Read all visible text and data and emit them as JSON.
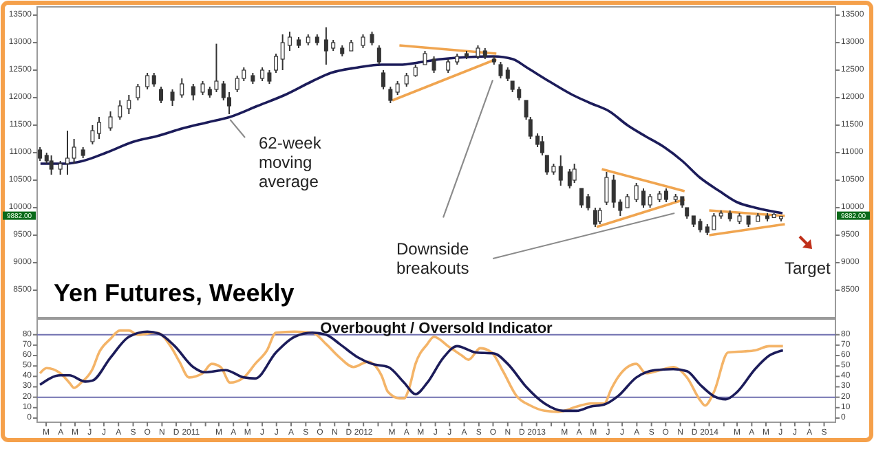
{
  "chart_data": [
    {
      "type": "candlestick",
      "title": "Yen Futures, Weekly",
      "xlim": [
        "2010-02-10",
        "2014-09-25"
      ],
      "ylim": [
        8000,
        13650
      ],
      "yticks": [
        8500,
        9000,
        9500,
        10000,
        10500,
        11000,
        11500,
        12000,
        12500,
        13000,
        13500
      ],
      "y2lim": [
        8000,
        13650
      ],
      "y2ticks": [
        8500,
        9000,
        9500,
        10000,
        10500,
        11000,
        11500,
        12000,
        12500,
        13000,
        13500
      ],
      "tick_labels": "y",
      "color": "#333333",
      "x": [
        "2010-02-16",
        "2010-03-02",
        "2010-03-12",
        "2010-03-31",
        "2010-04-15",
        "2010-04-29",
        "2010-05-18",
        "2010-06-07",
        "2010-06-21",
        "2010-07-15",
        "2010-08-04",
        "2010-08-23",
        "2010-09-11",
        "2010-10-01",
        "2010-10-15",
        "2010-10-30",
        "2010-11-23",
        "2010-12-13",
        "2011-01-06",
        "2011-01-26",
        "2011-02-10",
        "2011-02-24",
        "2011-03-11",
        "2011-03-23",
        "2011-04-09",
        "2011-04-23",
        "2011-05-12",
        "2011-06-01",
        "2011-06-16",
        "2011-06-30",
        "2011-07-14",
        "2011-07-29",
        "2011-08-17",
        "2011-09-06",
        "2011-09-25",
        "2011-10-14",
        "2011-10-29",
        "2011-11-17",
        "2011-12-06",
        "2011-12-31",
        "2012-01-19",
        "2012-02-03",
        "2012-02-12",
        "2012-02-27",
        "2012-03-13",
        "2012-04-01",
        "2012-04-20",
        "2012-05-10",
        "2012-05-29",
        "2012-06-28",
        "2012-07-17",
        "2012-08-06",
        "2012-08-30",
        "2012-09-14",
        "2012-10-03",
        "2012-10-17",
        "2012-11-01",
        "2012-11-11",
        "2012-11-25",
        "2012-12-10",
        "2012-12-19",
        "2013-01-03",
        "2013-01-13",
        "2013-01-23",
        "2013-02-06",
        "2013-02-21",
        "2013-03-12",
        "2013-03-22",
        "2013-04-06",
        "2013-04-20",
        "2013-05-05",
        "2013-05-15",
        "2013-05-29",
        "2013-06-13",
        "2013-06-27",
        "2013-07-12",
        "2013-07-31",
        "2013-08-15",
        "2013-08-29",
        "2013-09-18",
        "2013-10-02",
        "2013-10-22",
        "2013-11-05",
        "2013-11-15",
        "2013-11-29",
        "2013-12-13",
        "2013-12-28",
        "2014-01-11",
        "2014-01-26",
        "2014-02-14",
        "2014-03-06",
        "2014-03-25",
        "2014-04-14",
        "2014-05-04",
        "2014-05-18",
        "2014-06-02"
      ],
      "ohlc": [
        [
          11050,
          11100,
          10850,
          10900
        ],
        [
          10950,
          11000,
          10800,
          10850
        ],
        [
          10850,
          10950,
          10600,
          10700
        ],
        [
          10700,
          10850,
          10600,
          10800
        ],
        [
          10800,
          11400,
          10600,
          10900
        ],
        [
          10900,
          11250,
          10800,
          11100
        ],
        [
          11050,
          11100,
          10900,
          10950
        ],
        [
          11200,
          11500,
          11150,
          11400
        ],
        [
          11350,
          11650,
          11250,
          11550
        ],
        [
          11450,
          11750,
          11400,
          11650
        ],
        [
          11650,
          11950,
          11600,
          11850
        ],
        [
          11800,
          12050,
          11700,
          11950
        ],
        [
          12000,
          12250,
          11950,
          12200
        ],
        [
          12200,
          12450,
          12150,
          12400
        ],
        [
          12400,
          12450,
          12200,
          12250
        ],
        [
          12150,
          12200,
          11900,
          11950
        ],
        [
          12100,
          12150,
          11850,
          11950
        ],
        [
          12050,
          12350,
          12000,
          12250
        ],
        [
          12200,
          12250,
          11950,
          12050
        ],
        [
          12100,
          12300,
          12050,
          12250
        ],
        [
          12150,
          12200,
          12000,
          12050
        ],
        [
          12150,
          12980,
          12100,
          12300
        ],
        [
          12250,
          12300,
          11950,
          12000
        ],
        [
          12000,
          12100,
          11700,
          11850
        ],
        [
          12150,
          12400,
          12100,
          12350
        ],
        [
          12350,
          12550,
          12300,
          12500
        ],
        [
          12400,
          12450,
          12250,
          12300
        ],
        [
          12350,
          12550,
          12300,
          12500
        ],
        [
          12450,
          12500,
          12250,
          12300
        ],
        [
          12500,
          12800,
          12450,
          12750
        ],
        [
          12700,
          13150,
          12500,
          13000
        ],
        [
          12950,
          13200,
          12850,
          13100
        ],
        [
          13050,
          13100,
          12900,
          12950
        ],
        [
          13000,
          13150,
          12950,
          13100
        ],
        [
          13100,
          13150,
          12950,
          13000
        ],
        [
          13050,
          13280,
          12600,
          12850
        ],
        [
          12900,
          13050,
          12850,
          13000
        ],
        [
          12900,
          12950,
          12750,
          12800
        ],
        [
          12850,
          13050,
          12850,
          13000
        ],
        [
          12950,
          13150,
          12900,
          13100
        ],
        [
          13150,
          13200,
          12950,
          13000
        ],
        [
          12900,
          12950,
          12600,
          12650
        ],
        [
          12450,
          12500,
          12150,
          12200
        ],
        [
          12150,
          12200,
          11900,
          11950
        ],
        [
          12100,
          12300,
          12050,
          12250
        ],
        [
          12250,
          12450,
          12200,
          12400
        ],
        [
          12400,
          12600,
          12380,
          12550
        ],
        [
          12600,
          12850,
          12600,
          12800
        ],
        [
          12700,
          12750,
          12450,
          12500
        ],
        [
          12500,
          12700,
          12450,
          12650
        ],
        [
          12650,
          12800,
          12600,
          12750
        ],
        [
          12800,
          12850,
          12700,
          12750
        ],
        [
          12750,
          12950,
          12700,
          12900
        ],
        [
          12850,
          12900,
          12700,
          12750
        ],
        [
          12700,
          12750,
          12600,
          12650
        ],
        [
          12600,
          12650,
          12350,
          12400
        ],
        [
          12500,
          12550,
          12300,
          12350
        ],
        [
          12300,
          12300,
          12100,
          12150
        ],
        [
          12150,
          12200,
          11950,
          12000
        ],
        [
          11950,
          11950,
          11600,
          11650
        ],
        [
          11600,
          11650,
          11250,
          11300
        ],
        [
          11300,
          11350,
          11100,
          11150
        ],
        [
          11200,
          11300,
          10950,
          11000
        ],
        [
          10950,
          10950,
          10600,
          10650
        ],
        [
          10650,
          10800,
          10600,
          10750
        ],
        [
          10750,
          10950,
          10400,
          10500
        ],
        [
          10650,
          10700,
          10350,
          10400
        ],
        [
          10500,
          10800,
          10450,
          10700
        ],
        [
          10350,
          10350,
          10000,
          10050
        ],
        [
          10200,
          10250,
          9950,
          10000
        ],
        [
          9950,
          10000,
          9650,
          9700
        ],
        [
          9750,
          10000,
          9700,
          9950
        ],
        [
          10100,
          10650,
          10050,
          10550
        ],
        [
          10500,
          10600,
          10000,
          10100
        ],
        [
          10100,
          10150,
          9850,
          9950
        ],
        [
          10000,
          10250,
          10000,
          10200
        ],
        [
          10150,
          10450,
          10100,
          10400
        ],
        [
          10300,
          10350,
          10000,
          10050
        ],
        [
          10050,
          10250,
          10000,
          10200
        ],
        [
          10150,
          10300,
          10100,
          10250
        ],
        [
          10300,
          10350,
          10100,
          10150
        ],
        [
          10150,
          10250,
          10100,
          10200
        ],
        [
          10200,
          10200,
          10000,
          10050
        ],
        [
          10000,
          10000,
          9800,
          9850
        ],
        [
          9850,
          9850,
          9650,
          9700
        ],
        [
          9750,
          9800,
          9550,
          9600
        ],
        [
          9650,
          9700,
          9500,
          9550
        ],
        [
          9600,
          9900,
          9600,
          9850
        ],
        [
          9850,
          9950,
          9800,
          9900
        ],
        [
          9900,
          9950,
          9750,
          9800
        ],
        [
          9750,
          9900,
          9700,
          9850
        ],
        [
          9850,
          9850,
          9650,
          9700
        ],
        [
          9750,
          9900,
          9750,
          9850
        ],
        [
          9850,
          9900,
          9750,
          9800
        ],
        [
          9820,
          9900,
          9820,
          9880
        ],
        [
          9800,
          9850,
          9750,
          9840
        ]
      ],
      "series": [
        {
          "type": "line",
          "color": "#1c1c5a",
          "x": [
            "2010-02-17",
            "2010-04-10",
            "2010-05-18",
            "2010-07-06",
            "2010-09-02",
            "2010-10-21",
            "2010-12-18",
            "2011-02-05",
            "2011-03-25",
            "2011-05-22",
            "2011-07-19",
            "2011-09-15",
            "2011-10-24",
            "2011-12-21",
            "2012-02-08",
            "2012-03-17",
            "2012-05-05",
            "2012-06-13",
            "2012-10-02",
            "2012-11-12",
            "2012-12-11",
            "2013-01-27",
            "2013-03-18",
            "2013-04-25",
            "2013-06-04",
            "2013-07-12",
            "2013-08-19",
            "2013-09-28",
            "2013-11-05",
            "2013-12-12",
            "2014-01-23",
            "2014-03-01",
            "2014-04-08",
            "2014-06-05"
          ],
          "values": [
            10800,
            10800,
            10850,
            11000,
            11200,
            11300,
            11450,
            11550,
            11650,
            11850,
            12050,
            12300,
            12450,
            12550,
            12600,
            12600,
            12650,
            12700,
            12750,
            12700,
            12550,
            12300,
            12050,
            11900,
            11750,
            11500,
            11300,
            11100,
            10850,
            10550,
            10300,
            10100,
            10000,
            9900
          ]
        },
        {
          "type": "line",
          "color": "#f0a550",
          "x": [
            "2012-03-17",
            "2012-10-08"
          ],
          "values": [
            12950,
            12800
          ]
        },
        {
          "type": "line",
          "color": "#f0a550",
          "x": [
            "2012-03-02",
            "2012-10-08"
          ],
          "values": [
            11950,
            12700
          ]
        },
        {
          "type": "line",
          "color": "#f0a550",
          "x": [
            "2013-05-19",
            "2013-11-10"
          ],
          "values": [
            10700,
            10300
          ]
        },
        {
          "type": "line",
          "color": "#f0a550",
          "x": [
            "2013-05-08",
            "2013-11-10"
          ],
          "values": [
            9650,
            10150
          ]
        },
        {
          "type": "line",
          "color": "#f0a550",
          "x": [
            "2014-01-01",
            "2014-06-10"
          ],
          "values": [
            9950,
            9850
          ]
        },
        {
          "type": "line",
          "color": "#f0a550",
          "x": [
            "2014-01-01",
            "2014-06-10"
          ],
          "values": [
            9500,
            9700
          ]
        }
      ],
      "annotations": [
        {
          "text": "62-week moving average",
          "x": "2011-03-25",
          "y": 11600
        },
        "Downside breakouts",
        "Target",
        "9882.00"
      ]
    },
    {
      "type": "line",
      "title": "Overbought / Oversold Indicator",
      "xlim": [
        "2010-02-10",
        "2014-09-25"
      ],
      "ylim": [
        -4,
        95
      ],
      "yticks": [
        0,
        10,
        20,
        30,
        40,
        50,
        60,
        70,
        80
      ],
      "y2lim": [
        -4,
        95
      ],
      "y2ticks": [
        0,
        10,
        20,
        30,
        40,
        50,
        60,
        70,
        80
      ],
      "xticks": [
        {
          "value": "2010-03-01",
          "label": "M"
        },
        {
          "value": "2010-04-01",
          "label": "A"
        },
        {
          "value": "2010-05-01",
          "label": "M"
        },
        {
          "value": "2010-06-01",
          "label": "J"
        },
        {
          "value": "2010-07-01",
          "label": "J"
        },
        {
          "value": "2010-08-01",
          "label": "A"
        },
        {
          "value": "2010-09-01",
          "label": "S"
        },
        {
          "value": "2010-10-01",
          "label": "O"
        },
        {
          "value": "2010-11-01",
          "label": "N"
        },
        {
          "value": "2010-12-01",
          "label": "D"
        },
        {
          "value": "2011-01-01",
          "label": "2011"
        },
        {
          "value": "2011-02-01",
          "label": null
        },
        {
          "value": "2011-03-01",
          "label": "M"
        },
        {
          "value": "2011-04-01",
          "label": "A"
        },
        {
          "value": "2011-05-01",
          "label": "M"
        },
        {
          "value": "2011-06-01",
          "label": "J"
        },
        {
          "value": "2011-07-01",
          "label": "J"
        },
        {
          "value": "2011-08-01",
          "label": "A"
        },
        {
          "value": "2011-09-01",
          "label": "S"
        },
        {
          "value": "2011-10-01",
          "label": "O"
        },
        {
          "value": "2011-11-01",
          "label": "N"
        },
        {
          "value": "2011-12-01",
          "label": "D"
        },
        {
          "value": "2012-01-01",
          "label": "2012"
        },
        {
          "value": "2012-02-01",
          "label": null
        },
        {
          "value": "2012-03-01",
          "label": "M"
        },
        {
          "value": "2012-04-01",
          "label": "A"
        },
        {
          "value": "2012-05-01",
          "label": "M"
        },
        {
          "value": "2012-06-01",
          "label": "J"
        },
        {
          "value": "2012-07-01",
          "label": "J"
        },
        {
          "value": "2012-08-01",
          "label": "A"
        },
        {
          "value": "2012-09-01",
          "label": "S"
        },
        {
          "value": "2012-10-01",
          "label": "O"
        },
        {
          "value": "2012-11-01",
          "label": "N"
        },
        {
          "value": "2012-12-01",
          "label": "D"
        },
        {
          "value": "2013-01-01",
          "label": "2013"
        },
        {
          "value": "2013-02-01",
          "label": null
        },
        {
          "value": "2013-03-01",
          "label": "M"
        },
        {
          "value": "2013-04-01",
          "label": "A"
        },
        {
          "value": "2013-05-01",
          "label": "M"
        },
        {
          "value": "2013-06-01",
          "label": "J"
        },
        {
          "value": "2013-07-01",
          "label": "J"
        },
        {
          "value": "2013-08-01",
          "label": "A"
        },
        {
          "value": "2013-09-01",
          "label": "S"
        },
        {
          "value": "2013-10-01",
          "label": "O"
        },
        {
          "value": "2013-11-01",
          "label": "N"
        },
        {
          "value": "2013-12-01",
          "label": "D"
        },
        {
          "value": "2014-01-01",
          "label": "2014"
        },
        {
          "value": "2014-02-01",
          "label": null
        },
        {
          "value": "2014-03-01",
          "label": "M"
        },
        {
          "value": "2014-04-01",
          "label": "A"
        },
        {
          "value": "2014-05-01",
          "label": "M"
        },
        {
          "value": "2014-06-01",
          "label": "J"
        },
        {
          "value": "2014-07-01",
          "label": "J"
        },
        {
          "value": "2014-08-01",
          "label": "A"
        },
        {
          "value": "2014-09-01",
          "label": "S"
        }
      ],
      "series": [
        {
          "color": "#f4b468",
          "x": [
            "2010-02-16",
            "2010-03-02",
            "2010-03-31",
            "2010-04-19",
            "2010-04-29",
            "2010-05-14",
            "2010-06-07",
            "2010-06-21",
            "2010-07-15",
            "2010-08-04",
            "2010-08-23",
            "2010-09-11",
            "2010-10-21",
            "2010-11-19",
            "2010-12-08",
            "2010-12-28",
            "2011-01-26",
            "2011-02-14",
            "2011-03-05",
            "2011-03-25",
            "2011-04-23",
            "2011-05-17",
            "2011-06-11",
            "2011-06-30",
            "2011-08-08",
            "2011-09-15",
            "2011-10-14",
            "2011-11-12",
            "2011-12-11",
            "2012-01-10",
            "2012-02-08",
            "2012-02-22",
            "2012-03-17",
            "2012-03-27",
            "2012-04-06",
            "2012-04-20",
            "2012-05-15",
            "2012-05-29",
            "2012-06-28",
            "2012-07-27",
            "2012-08-10",
            "2012-09-04",
            "2012-09-28",
            "2012-10-22",
            "2012-11-20",
            "2012-12-19",
            "2013-01-18",
            "2013-02-16",
            "2013-03-27",
            "2013-04-25",
            "2013-05-24",
            "2013-06-08",
            "2013-06-22",
            "2013-07-31",
            "2013-08-20",
            "2013-09-27",
            "2013-10-17",
            "2013-11-15",
            "2013-12-13",
            "2013-12-23",
            "2014-01-11",
            "2014-02-10",
            "2014-03-16",
            "2014-04-08",
            "2014-05-08",
            "2014-06-06"
          ],
          "values": [
            43,
            48,
            43,
            34,
            29,
            34,
            47,
            63,
            76,
            84,
            84,
            80,
            82,
            69,
            54,
            39,
            43,
            52,
            49,
            34,
            39,
            52,
            65,
            82,
            83,
            82,
            71,
            58,
            49,
            54,
            41,
            25,
            19,
            19,
            28,
            52,
            71,
            78,
            69,
            60,
            56,
            67,
            63,
            45,
            21,
            12,
            7,
            6,
            11,
            14,
            14,
            28,
            39,
            52,
            43,
            47,
            49,
            39,
            17,
            12,
            25,
            63,
            64,
            65,
            69,
            69
          ]
        },
        {
          "color": "#1c1c5a",
          "x": [
            "2010-02-16",
            "2010-03-31",
            "2010-04-19",
            "2010-05-23",
            "2010-06-07",
            "2010-07-15",
            "2010-08-23",
            "2010-10-01",
            "2010-10-26",
            "2010-11-28",
            "2011-01-06",
            "2011-01-30",
            "2011-03-15",
            "2011-04-23",
            "2011-05-17",
            "2011-06-30",
            "2011-08-08",
            "2011-09-15",
            "2011-10-14",
            "2011-11-12",
            "2011-12-21",
            "2012-01-19",
            "2012-02-22",
            "2012-03-27",
            "2012-04-20",
            "2012-05-15",
            "2012-06-18",
            "2012-07-17",
            "2012-08-25",
            "2012-10-03",
            "2012-11-01",
            "2012-12-10",
            "2013-01-18",
            "2013-02-26",
            "2013-03-27",
            "2013-04-25",
            "2013-05-24",
            "2013-06-22",
            "2013-07-31",
            "2013-09-08",
            "2013-10-17",
            "2013-11-15",
            "2013-12-13",
            "2014-01-11",
            "2014-02-05",
            "2014-03-01",
            "2014-04-08",
            "2014-05-08",
            "2014-06-06"
          ],
          "values": [
            32,
            41,
            41,
            35,
            36,
            58,
            78,
            83,
            81,
            69,
            49,
            44,
            46,
            39,
            38,
            63,
            78,
            82,
            80,
            71,
            58,
            52,
            49,
            34,
            23,
            34,
            58,
            69,
            63,
            62,
            52,
            30,
            14,
            7,
            7,
            11,
            13,
            21,
            39,
            46,
            47,
            45,
            32,
            21,
            18,
            25,
            47,
            60,
            65
          ]
        }
      ],
      "ref_lines": [
        {
          "axis": "y",
          "value": 80,
          "color": "#7070b0"
        },
        {
          "axis": "y",
          "value": 20,
          "color": "#7070b0"
        }
      ]
    }
  ]
}
